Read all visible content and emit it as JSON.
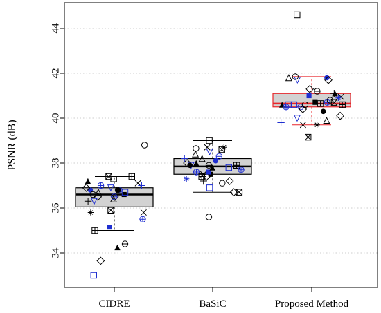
{
  "chart_data": {
    "type": "box",
    "ylabel": "PSNR (dB)",
    "ylim": [
      32.7,
      45.2
    ],
    "y_ticks": [
      34,
      36,
      38,
      40,
      42,
      44
    ],
    "grid": "horizontal-dotted",
    "categories": [
      "CIDRE",
      "BaSiC",
      "Proposed Method"
    ],
    "boxes": [
      {
        "name": "CIDRE",
        "q1": 36.05,
        "median": 36.6,
        "q3": 36.9,
        "whisker_low": 35.0,
        "whisker_high": 37.4,
        "color": "#000000",
        "points": [
          37.3,
          36.8,
          36.8,
          36.7,
          36.9,
          36.5,
          36.3,
          37.1,
          36.8,
          37.4,
          37.0,
          37.4,
          36.6,
          37.2,
          36.5,
          36.5,
          36.7,
          36.6,
          36.8,
          36.4,
          36.3,
          36.9,
          37.0,
          35.8,
          35.8,
          35.9,
          35.5,
          35.0,
          35.15,
          34.25,
          34.4,
          33.65,
          33.0,
          38.8
        ]
      },
      {
        "name": "BaSiC",
        "q1": 37.5,
        "median": 37.85,
        "q3": 38.2,
        "whisker_low": 36.7,
        "whisker_high": 39.0,
        "color": "#000000",
        "points": [
          39.0,
          38.65,
          38.1,
          38.2,
          37.9,
          37.2,
          37.2,
          37.5,
          37.3,
          36.7,
          37.6,
          37.9,
          37.5,
          38.0,
          38.3,
          37.4,
          37.8,
          37.1,
          37.9,
          38.4,
          38.5,
          38.0,
          38.2,
          38.7,
          38.7,
          38.6,
          37.7,
          37.4,
          37.6,
          37.8,
          37.9,
          36.7,
          36.9,
          35.6
        ]
      },
      {
        "name": "Proposed Method",
        "q1": 40.5,
        "median": 40.65,
        "q3": 41.1,
        "whisker_low": 39.7,
        "whisker_high": 41.85,
        "color": "#e8252a",
        "points": [
          44.6,
          41.85,
          41.8,
          41.8,
          41.7,
          41.7,
          41.1,
          40.95,
          40.9,
          40.7,
          40.7,
          40.65,
          40.7,
          40.6,
          40.5,
          40.4,
          40.6,
          40.6,
          40.3,
          39.9,
          40.0,
          40.1,
          39.8,
          39.7,
          39.7,
          39.15,
          40.5,
          40.6,
          41.0,
          41.1,
          41.2,
          41.3,
          40.6,
          40.8
        ]
      }
    ]
  }
}
